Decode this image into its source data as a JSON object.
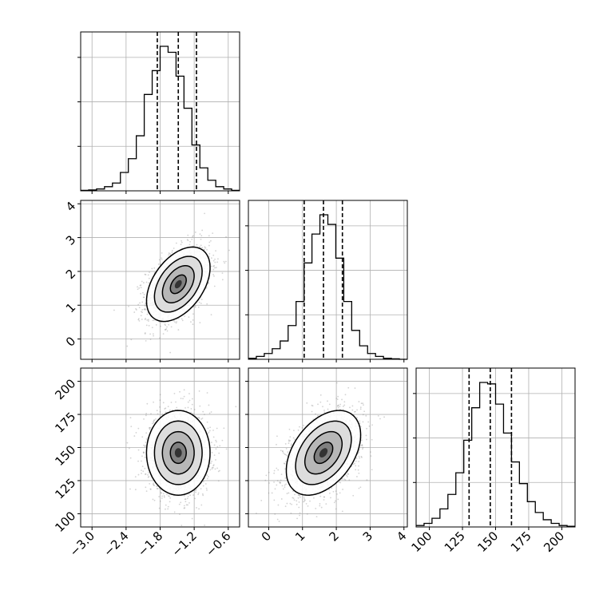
{
  "chart_data": {
    "type": "corner",
    "parameters": [
      {
        "range": [
          -3.2,
          -0.4
        ],
        "ticks": [
          -3.0,
          -2.4,
          -1.8,
          -1.2,
          -0.6
        ],
        "tick_labels": [
          "−3.0",
          "−2.4",
          "−1.8",
          "−1.2",
          "−0.6"
        ],
        "quantiles": [
          -1.85,
          -1.48,
          -1.16
        ]
      },
      {
        "range": [
          -0.6,
          4.1
        ],
        "ticks": [
          0,
          1,
          2,
          3,
          4
        ],
        "tick_labels": [
          "0",
          "1",
          "2",
          "3",
          "4"
        ],
        "quantiles": [
          1.05,
          1.62,
          2.18
        ]
      },
      {
        "range": [
          90,
          210
        ],
        "ticks": [
          100,
          125,
          150,
          175,
          200
        ],
        "tick_labels": [
          "100",
          "125",
          "150",
          "175",
          "200"
        ],
        "quantiles": [
          130,
          146,
          162
        ]
      }
    ],
    "histograms": [
      {
        "param": 0,
        "bin_edges": [
          -3.2,
          -3.06,
          -2.92,
          -2.78,
          -2.64,
          -2.5,
          -2.36,
          -2.22,
          -2.08,
          -1.94,
          -1.8,
          -1.66,
          -1.52,
          -1.38,
          -1.24,
          -1.1,
          -0.96,
          -0.82,
          -0.68,
          -0.54,
          -0.4
        ],
        "counts": [
          1,
          2,
          4,
          9,
          17,
          40,
          70,
          120,
          210,
          262,
          315,
          302,
          250,
          180,
          100,
          50,
          23,
          9,
          4,
          1
        ]
      },
      {
        "param": 1,
        "bin_edges": [
          -0.6,
          -0.365,
          -0.13,
          0.105,
          0.34,
          0.575,
          0.81,
          1.045,
          1.28,
          1.515,
          1.75,
          1.985,
          2.22,
          2.455,
          2.69,
          2.925,
          3.16,
          3.395,
          3.63,
          3.865,
          4.1
        ],
        "counts": [
          2,
          6,
          12,
          22,
          38,
          70,
          120,
          200,
          260,
          300,
          280,
          210,
          120,
          60,
          28,
          12,
          6,
          2,
          1,
          0
        ]
      },
      {
        "param": 2,
        "bin_edges": [
          90,
          96,
          102,
          108,
          114,
          120,
          126,
          132,
          138,
          144,
          150,
          156,
          162,
          168,
          174,
          180,
          186,
          192,
          198,
          204,
          210
        ],
        "counts": [
          2,
          5,
          12,
          25,
          45,
          75,
          120,
          165,
          200,
          198,
          170,
          130,
          90,
          60,
          35,
          20,
          10,
          5,
          2,
          1
        ]
      }
    ],
    "pairs": [
      {
        "x_param": 0,
        "y_param": 1,
        "center": [
          -1.48,
          1.62
        ],
        "sd": [
          0.28,
          0.55
        ],
        "rho": 0.45
      },
      {
        "x_param": 0,
        "y_param": 2,
        "center": [
          -1.48,
          146
        ],
        "sd": [
          0.28,
          16
        ],
        "rho": 0.0
      },
      {
        "x_param": 1,
        "y_param": 2,
        "center": [
          1.62,
          146
        ],
        "sd": [
          0.55,
          16
        ],
        "rho": 0.42
      }
    ],
    "contour_levels_sigma": [
      0.5,
      1.0,
      1.5,
      2.0
    ],
    "grid": true
  }
}
